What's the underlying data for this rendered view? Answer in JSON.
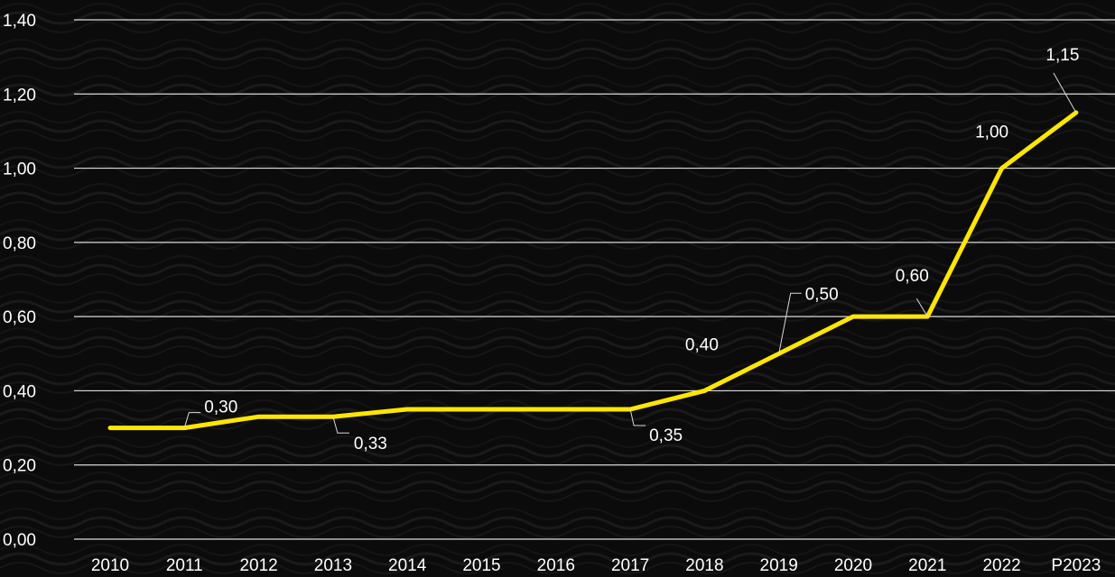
{
  "chart_data": {
    "type": "line",
    "title": "",
    "xlabel": "",
    "ylabel": "",
    "categories": [
      "2010",
      "2011",
      "2012",
      "2013",
      "2014",
      "2015",
      "2016",
      "2017",
      "2018",
      "2019",
      "2020",
      "2021",
      "2022",
      "P2023"
    ],
    "series": [
      {
        "values": [
          0.3,
          0.3,
          0.33,
          0.33,
          0.35,
          0.35,
          0.35,
          0.35,
          0.4,
          0.5,
          0.6,
          0.6,
          1.0,
          1.15
        ],
        "color": "#ffe600"
      }
    ],
    "ylim": [
      0,
      1.4
    ],
    "yticks": [
      "0,00",
      "0,20",
      "0,40",
      "0,60",
      "0,80",
      "1,00",
      "1,20",
      "1,40"
    ],
    "grid": true,
    "legend": "none",
    "data_labels": [
      {
        "category": "2011",
        "text": "0,30"
      },
      {
        "category": "2013",
        "text": "0,33"
      },
      {
        "category": "2017",
        "text": "0,35"
      },
      {
        "category": "2018",
        "text": "0,40"
      },
      {
        "category": "2019",
        "text": "0,50"
      },
      {
        "category": "2021",
        "text": "0,60"
      },
      {
        "category": "2022",
        "text": "1,00"
      },
      {
        "category": "P2023",
        "text": "1,15"
      }
    ]
  }
}
